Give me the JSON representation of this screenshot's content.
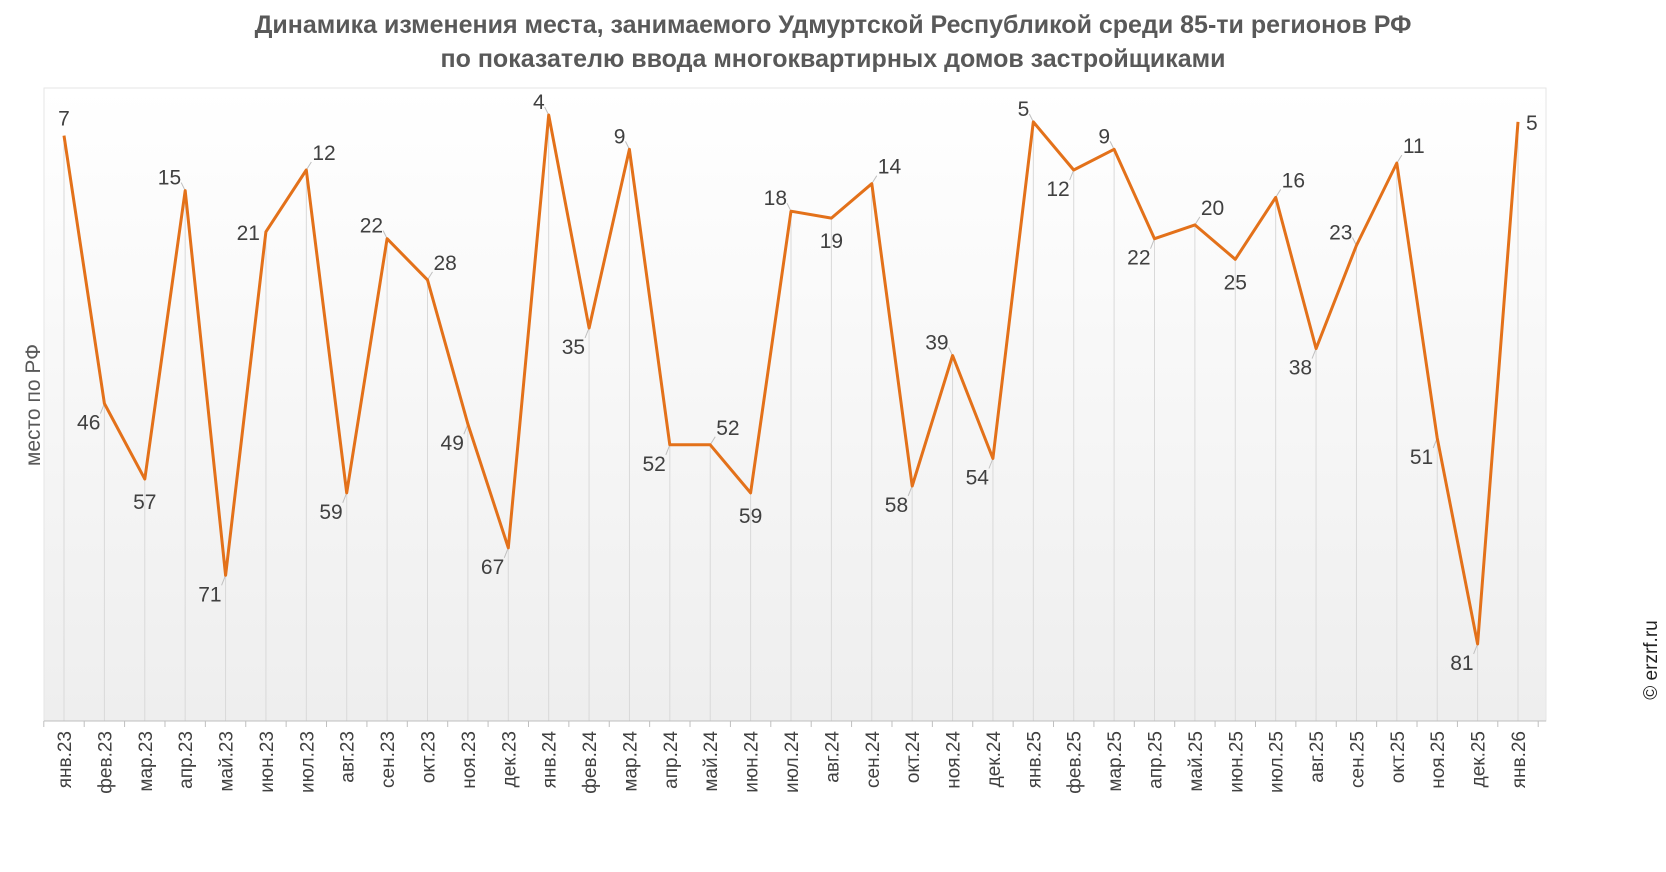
{
  "title_line1": "Динамика изменения места, занимаемого Удмуртской Республикой среди 85-ти регионов РФ",
  "title_line2": "по показателю ввода многоквартирных домов застройщиками",
  "copyright": "© erzrf.ru",
  "colors": {
    "line": "#E3711A",
    "plot_bg_top": "#FFFFFF",
    "plot_bg_bottom": "#EFEFEF",
    "grid": "#D9D9D9",
    "text": "#404040",
    "title": "#595959"
  },
  "chart_data": {
    "type": "line",
    "ylabel": "место по РФ",
    "xlabel": "",
    "y_inverted": true,
    "ylim": [
      0,
      85
    ],
    "grid": "vertical",
    "categories": [
      "янв.23",
      "фев.23",
      "мар.23",
      "апр.23",
      "май.23",
      "июн.23",
      "июл.23",
      "авг.23",
      "сен.23",
      "окт.23",
      "ноя.23",
      "дек.23",
      "янв.24",
      "фев.24",
      "мар.24",
      "апр.24",
      "май.24",
      "июн.24",
      "июл.24",
      "авг.24",
      "сен.24",
      "окт.24",
      "ноя.24",
      "дек.24",
      "янв.25",
      "фев.25",
      "мар.25",
      "апр.25",
      "май.25",
      "июн.25",
      "июл.25",
      "авг.25",
      "сен.25",
      "окт.25",
      "ноя.25",
      "дек.25",
      "янв.26"
    ],
    "series": [
      {
        "values": [
          7,
          46,
          57,
          15,
          71,
          21,
          12,
          59,
          22,
          28,
          49,
          67,
          4,
          35,
          9,
          52,
          52,
          59,
          18,
          19,
          14,
          58,
          39,
          54,
          5,
          12,
          9,
          22,
          20,
          25,
          16,
          38,
          23,
          11,
          51,
          81,
          5
        ]
      }
    ]
  }
}
